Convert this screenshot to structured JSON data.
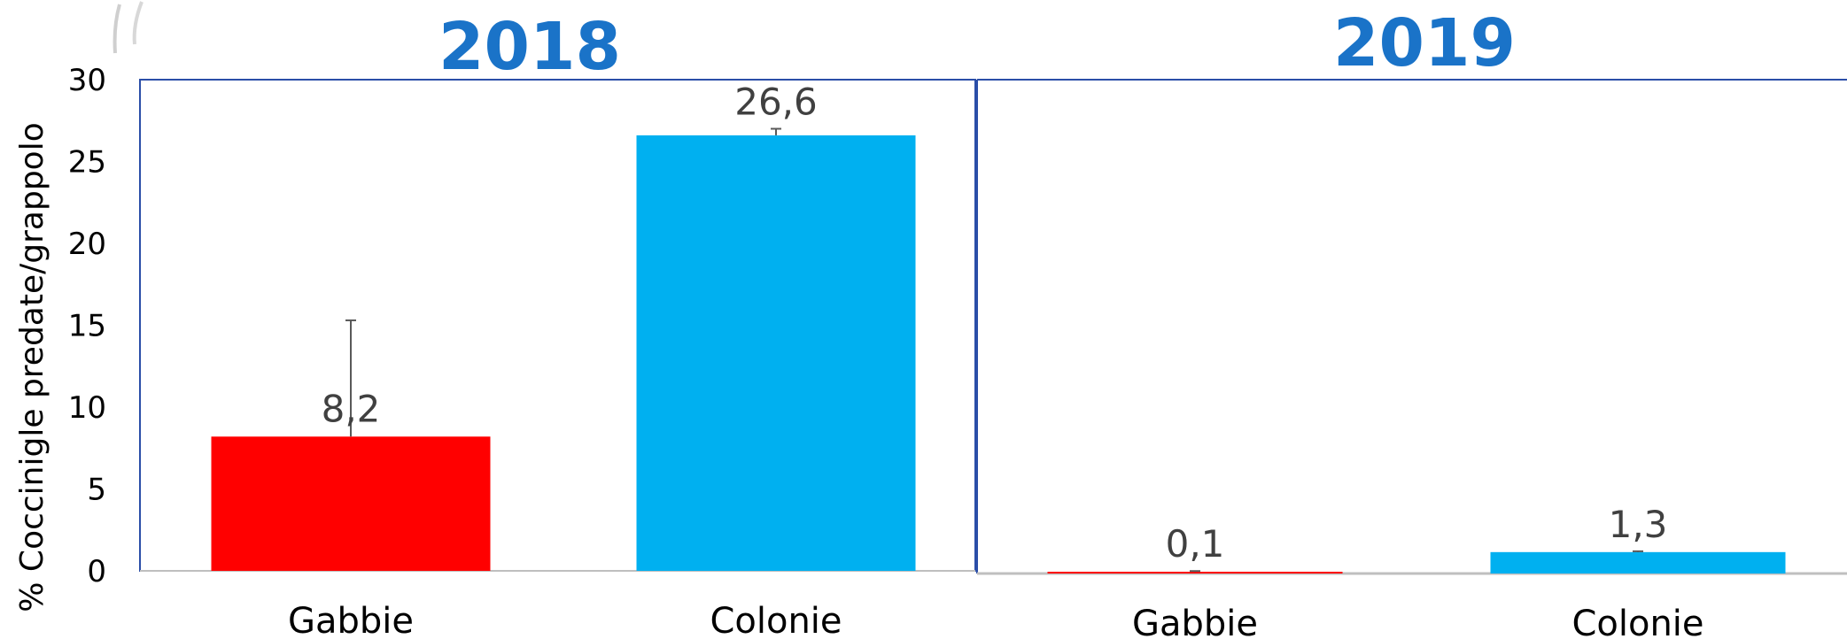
{
  "chart_data": [
    {
      "type": "bar",
      "title": "2018",
      "categories": [
        "Gabbie",
        "Colonie"
      ],
      "values": [
        8.2,
        26.6
      ],
      "value_labels": [
        "8,2",
        "26,6"
      ],
      "error_upper": [
        15.3,
        27.0
      ],
      "colors": [
        "#ff0000",
        "#00b0f0"
      ],
      "ylabel": "% Coccinigle predate/grappolo",
      "ylim": [
        0,
        30
      ],
      "yticks": [
        "0",
        "5",
        "10",
        "15",
        "20",
        "25",
        "30"
      ]
    },
    {
      "type": "bar",
      "title": "2019",
      "categories": [
        "Gabbie",
        "Colonie"
      ],
      "values": [
        0.1,
        1.3
      ],
      "value_labels": [
        "0,1",
        "1,3"
      ],
      "error_upper": [
        0.15,
        1.35
      ],
      "colors": [
        "#ff0000",
        "#00b0f0"
      ],
      "ylim": [
        0,
        30
      ]
    }
  ],
  "colors": {
    "frame": "#2b4ea8",
    "title": "#1a73c8",
    "value_text": "#404040"
  }
}
